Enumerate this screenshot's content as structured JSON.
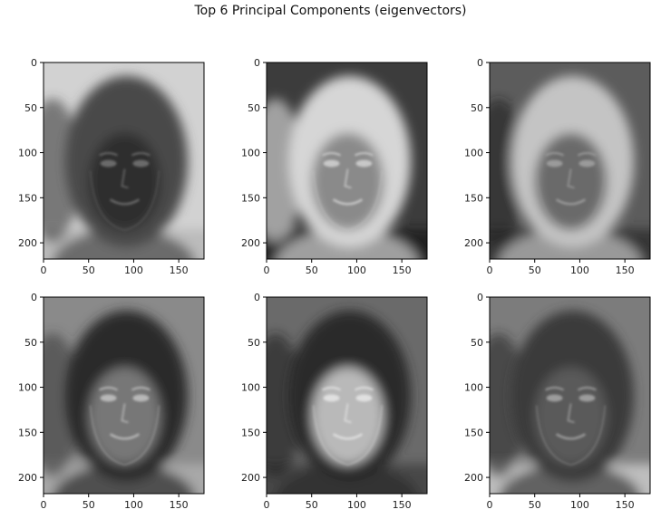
{
  "figure": {
    "suptitle": "Top 6 Principal Components (eigenvectors)"
  },
  "chart_data": [
    {
      "type": "heatmap",
      "colormap": "gray",
      "image": "principal component 1 (face-like eigenvector)",
      "rows": 218,
      "cols": 178,
      "x_ticks": [
        0,
        50,
        100,
        150
      ],
      "y_ticks": [
        0,
        50,
        100,
        150,
        200
      ],
      "x_range": [
        0,
        178
      ],
      "y_range": [
        218,
        0
      ]
    },
    {
      "type": "heatmap",
      "colormap": "gray",
      "image": "principal component 2 (face-like eigenvector)",
      "rows": 218,
      "cols": 178,
      "x_ticks": [
        0,
        50,
        100,
        150
      ],
      "y_ticks": [
        0,
        50,
        100,
        150,
        200
      ],
      "x_range": [
        0,
        178
      ],
      "y_range": [
        218,
        0
      ]
    },
    {
      "type": "heatmap",
      "colormap": "gray",
      "image": "principal component 3 (face-like eigenvector)",
      "rows": 218,
      "cols": 178,
      "x_ticks": [
        0,
        50,
        100,
        150
      ],
      "y_ticks": [
        0,
        50,
        100,
        150,
        200
      ],
      "x_range": [
        0,
        178
      ],
      "y_range": [
        218,
        0
      ]
    },
    {
      "type": "heatmap",
      "colormap": "gray",
      "image": "principal component 4 (face-like eigenvector)",
      "rows": 218,
      "cols": 178,
      "x_ticks": [
        0,
        50,
        100,
        150
      ],
      "y_ticks": [
        0,
        50,
        100,
        150,
        200
      ],
      "x_range": [
        0,
        178
      ],
      "y_range": [
        218,
        0
      ]
    },
    {
      "type": "heatmap",
      "colormap": "gray",
      "image": "principal component 5 (face-like eigenvector)",
      "rows": 218,
      "cols": 178,
      "x_ticks": [
        0,
        50,
        100,
        150
      ],
      "y_ticks": [
        0,
        50,
        100,
        150,
        200
      ],
      "x_range": [
        0,
        178
      ],
      "y_range": [
        218,
        0
      ]
    },
    {
      "type": "heatmap",
      "colormap": "gray",
      "image": "principal component 6 (face-like eigenvector)",
      "rows": 218,
      "cols": 178,
      "x_ticks": [
        0,
        50,
        100,
        150
      ],
      "y_ticks": [
        0,
        50,
        100,
        150,
        200
      ],
      "x_range": [
        0,
        178
      ],
      "y_range": [
        218,
        0
      ]
    }
  ]
}
